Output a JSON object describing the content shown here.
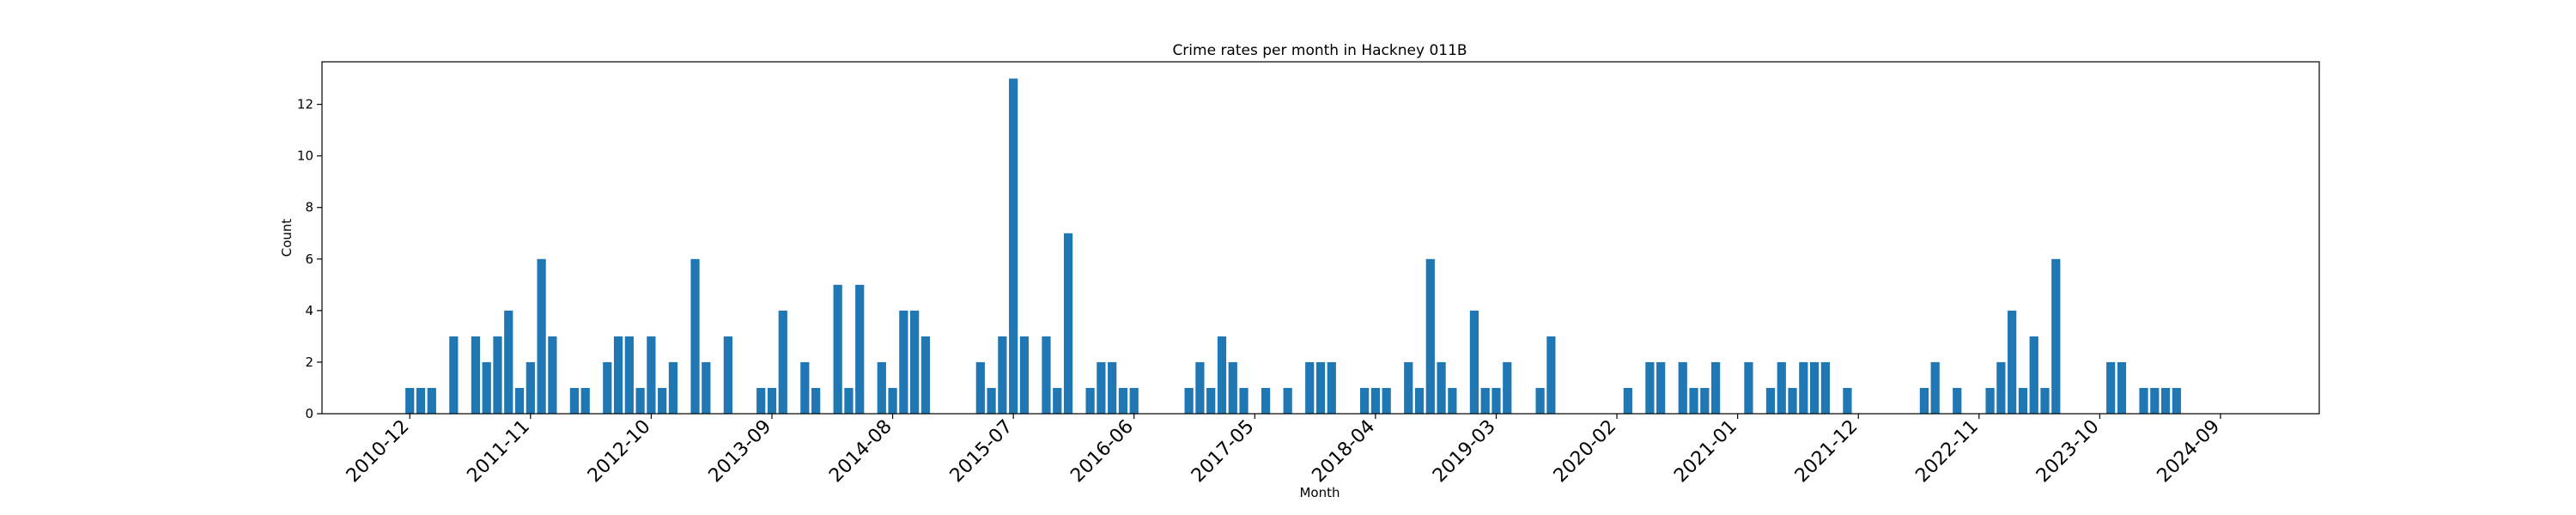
{
  "chart_data": {
    "type": "bar",
    "title": "Crime rates per month in Hackney 011B",
    "xlabel": "Month",
    "ylabel": "Count",
    "ylim": [
      0,
      13.65
    ],
    "yticks": [
      0,
      2,
      4,
      6,
      8,
      10,
      12
    ],
    "x_range": [
      "2010-04",
      "2025-06"
    ],
    "xticks": [
      "2010-12",
      "2011-11",
      "2012-10",
      "2013-09",
      "2014-08",
      "2015-07",
      "2016-06",
      "2017-05",
      "2018-04",
      "2019-03",
      "2020-02",
      "2021-01",
      "2021-12",
      "2022-11",
      "2023-10",
      "2024-09"
    ],
    "bar_color": "#1f77b4",
    "grid": false,
    "legend": "none",
    "x": [
      "2010-12",
      "2011-01",
      "2011-02",
      "2011-04",
      "2011-06",
      "2011-07",
      "2011-08",
      "2011-09",
      "2011-10",
      "2011-11",
      "2011-12",
      "2012-01",
      "2012-03",
      "2012-04",
      "2012-06",
      "2012-07",
      "2012-08",
      "2012-09",
      "2012-10",
      "2012-11",
      "2012-12",
      "2013-02",
      "2013-03",
      "2013-05",
      "2013-08",
      "2013-09",
      "2013-10",
      "2013-12",
      "2014-01",
      "2014-03",
      "2014-04",
      "2014-05",
      "2014-07",
      "2014-08",
      "2014-09",
      "2014-10",
      "2014-11",
      "2015-04",
      "2015-05",
      "2015-06",
      "2015-07",
      "2015-08",
      "2015-10",
      "2015-11",
      "2015-12",
      "2016-02",
      "2016-03",
      "2016-04",
      "2016-05",
      "2016-06",
      "2016-11",
      "2016-12",
      "2017-01",
      "2017-02",
      "2017-03",
      "2017-04",
      "2017-06",
      "2017-08",
      "2017-10",
      "2017-11",
      "2017-12",
      "2018-03",
      "2018-04",
      "2018-05",
      "2018-07",
      "2018-08",
      "2018-09",
      "2018-10",
      "2018-11",
      "2019-01",
      "2019-02",
      "2019-03",
      "2019-04",
      "2019-07",
      "2019-08",
      "2020-03",
      "2020-05",
      "2020-06",
      "2020-08",
      "2020-09",
      "2020-10",
      "2020-11",
      "2021-02",
      "2021-04",
      "2021-05",
      "2021-06",
      "2021-07",
      "2021-08",
      "2021-09",
      "2021-11",
      "2022-06",
      "2022-07",
      "2022-09",
      "2022-12",
      "2023-01",
      "2023-02",
      "2023-03",
      "2023-04",
      "2023-05",
      "2023-06",
      "2023-11",
      "2023-12",
      "2024-02",
      "2024-03",
      "2024-04",
      "2024-05"
    ],
    "values": [
      1,
      1,
      1,
      3,
      3,
      2,
      3,
      4,
      1,
      2,
      6,
      3,
      1,
      1,
      2,
      3,
      3,
      1,
      3,
      1,
      2,
      6,
      2,
      3,
      1,
      1,
      4,
      2,
      1,
      5,
      1,
      5,
      2,
      1,
      4,
      4,
      3,
      2,
      1,
      3,
      13,
      3,
      3,
      1,
      7,
      1,
      2,
      2,
      1,
      1,
      1,
      2,
      1,
      3,
      2,
      1,
      1,
      1,
      2,
      2,
      2,
      1,
      1,
      1,
      2,
      1,
      6,
      2,
      1,
      4,
      1,
      1,
      2,
      1,
      3,
      1,
      2,
      2,
      2,
      1,
      1,
      2,
      2,
      1,
      2,
      1,
      2,
      2,
      2,
      1,
      1,
      2,
      1,
      1,
      2,
      4,
      1,
      3,
      1,
      6,
      2,
      2,
      1,
      1,
      1,
      1
    ]
  }
}
